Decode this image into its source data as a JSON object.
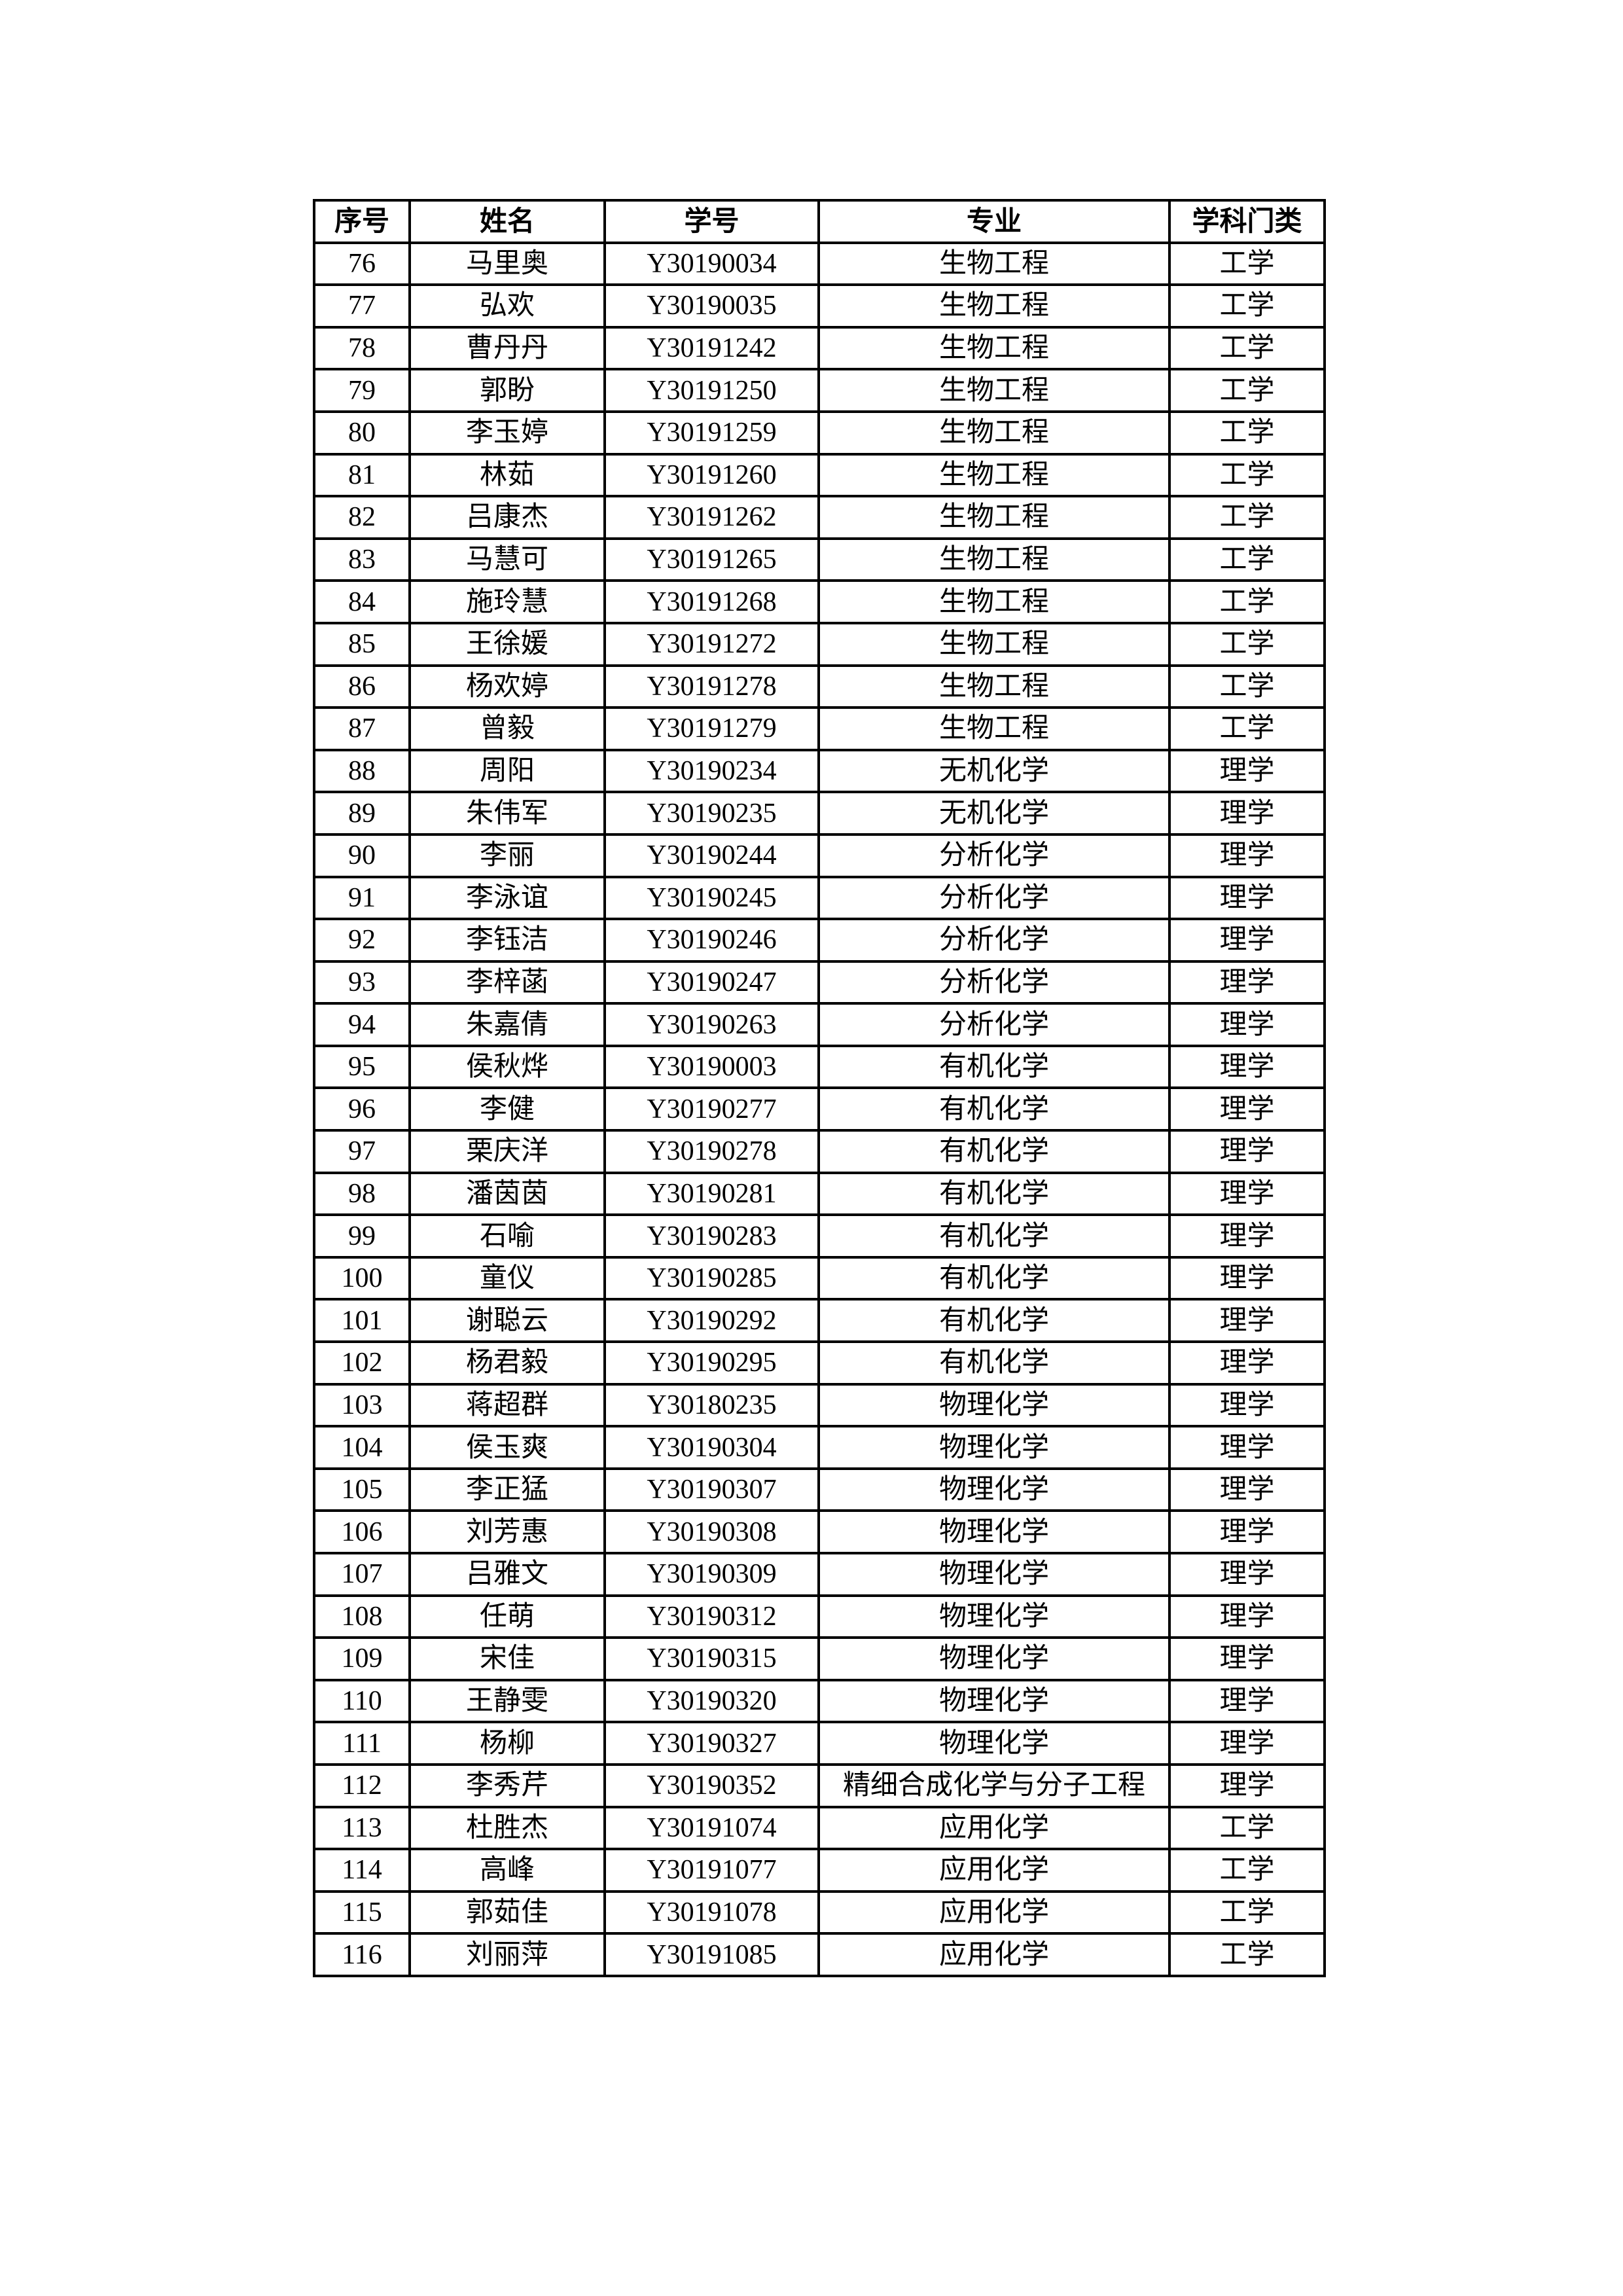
{
  "table": {
    "headers": [
      "序号",
      "姓名",
      "学号",
      "专业",
      "学科门类"
    ],
    "rows": [
      [
        "76",
        "马里奥",
        "Y30190034",
        "生物工程",
        "工学"
      ],
      [
        "77",
        "弘欢",
        "Y30190035",
        "生物工程",
        "工学"
      ],
      [
        "78",
        "曹丹丹",
        "Y30191242",
        "生物工程",
        "工学"
      ],
      [
        "79",
        "郭盼",
        "Y30191250",
        "生物工程",
        "工学"
      ],
      [
        "80",
        "李玉婷",
        "Y30191259",
        "生物工程",
        "工学"
      ],
      [
        "81",
        "林茹",
        "Y30191260",
        "生物工程",
        "工学"
      ],
      [
        "82",
        "吕康杰",
        "Y30191262",
        "生物工程",
        "工学"
      ],
      [
        "83",
        "马慧可",
        "Y30191265",
        "生物工程",
        "工学"
      ],
      [
        "84",
        "施玲慧",
        "Y30191268",
        "生物工程",
        "工学"
      ],
      [
        "85",
        "王徐媛",
        "Y30191272",
        "生物工程",
        "工学"
      ],
      [
        "86",
        "杨欢婷",
        "Y30191278",
        "生物工程",
        "工学"
      ],
      [
        "87",
        "曾毅",
        "Y30191279",
        "生物工程",
        "工学"
      ],
      [
        "88",
        "周阳",
        "Y30190234",
        "无机化学",
        "理学"
      ],
      [
        "89",
        "朱伟军",
        "Y30190235",
        "无机化学",
        "理学"
      ],
      [
        "90",
        "李丽",
        "Y30190244",
        "分析化学",
        "理学"
      ],
      [
        "91",
        "李泳谊",
        "Y30190245",
        "分析化学",
        "理学"
      ],
      [
        "92",
        "李钰洁",
        "Y30190246",
        "分析化学",
        "理学"
      ],
      [
        "93",
        "李梓菡",
        "Y30190247",
        "分析化学",
        "理学"
      ],
      [
        "94",
        "朱嘉倩",
        "Y30190263",
        "分析化学",
        "理学"
      ],
      [
        "95",
        "侯秋烨",
        "Y30190003",
        "有机化学",
        "理学"
      ],
      [
        "96",
        "李健",
        "Y30190277",
        "有机化学",
        "理学"
      ],
      [
        "97",
        "栗庆洋",
        "Y30190278",
        "有机化学",
        "理学"
      ],
      [
        "98",
        "潘茵茵",
        "Y30190281",
        "有机化学",
        "理学"
      ],
      [
        "99",
        "石喻",
        "Y30190283",
        "有机化学",
        "理学"
      ],
      [
        "100",
        "童仪",
        "Y30190285",
        "有机化学",
        "理学"
      ],
      [
        "101",
        "谢聪云",
        "Y30190292",
        "有机化学",
        "理学"
      ],
      [
        "102",
        "杨君毅",
        "Y30190295",
        "有机化学",
        "理学"
      ],
      [
        "103",
        "蒋超群",
        "Y30180235",
        "物理化学",
        "理学"
      ],
      [
        "104",
        "侯玉爽",
        "Y30190304",
        "物理化学",
        "理学"
      ],
      [
        "105",
        "李正猛",
        "Y30190307",
        "物理化学",
        "理学"
      ],
      [
        "106",
        "刘芳惠",
        "Y30190308",
        "物理化学",
        "理学"
      ],
      [
        "107",
        "吕雅文",
        "Y30190309",
        "物理化学",
        "理学"
      ],
      [
        "108",
        "任萌",
        "Y30190312",
        "物理化学",
        "理学"
      ],
      [
        "109",
        "宋佳",
        "Y30190315",
        "物理化学",
        "理学"
      ],
      [
        "110",
        "王静雯",
        "Y30190320",
        "物理化学",
        "理学"
      ],
      [
        "111",
        "杨柳",
        "Y30190327",
        "物理化学",
        "理学"
      ],
      [
        "112",
        "李秀芹",
        "Y30190352",
        "精细合成化学与分子工程",
        "理学"
      ],
      [
        "113",
        "杜胜杰",
        "Y30191074",
        "应用化学",
        "工学"
      ],
      [
        "114",
        "高峰",
        "Y30191077",
        "应用化学",
        "工学"
      ],
      [
        "115",
        "郭茹佳",
        "Y30191078",
        "应用化学",
        "工学"
      ],
      [
        "116",
        "刘丽萍",
        "Y30191085",
        "应用化学",
        "工学"
      ]
    ]
  }
}
